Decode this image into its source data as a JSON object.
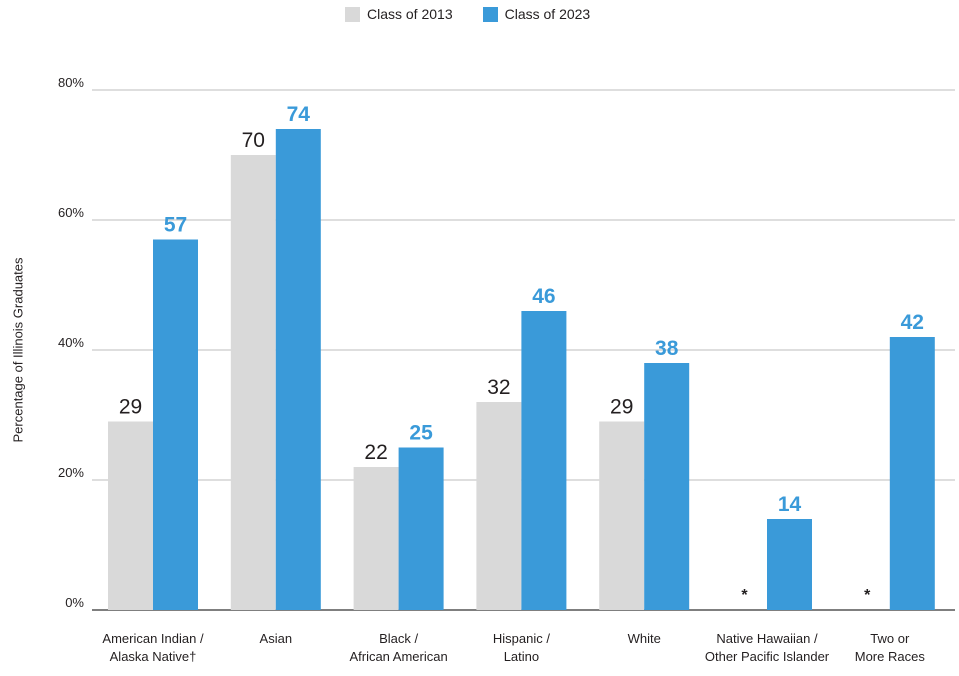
{
  "chart_data": {
    "type": "bar",
    "ylabel": "Percentage of Illinois Graduates",
    "ylim": [
      0,
      80
    ],
    "yticks": [
      "0%",
      "20%",
      "40%",
      "60%",
      "80%"
    ],
    "ytick_values": [
      0,
      20,
      40,
      60,
      80
    ],
    "grid": true,
    "legend_position": "top-center",
    "categories": [
      [
        "American Indian /",
        "Alaska Native†"
      ],
      [
        "Asian"
      ],
      [
        "Black /",
        "African American"
      ],
      [
        "Hispanic /",
        "Latino"
      ],
      [
        "White"
      ],
      [
        "Native Hawaiian /",
        "Other Pacific Islander"
      ],
      [
        "Two or",
        "More Races"
      ]
    ],
    "series": [
      {
        "name": "Class of 2013",
        "color": "#d9d9d9",
        "label_color": "#231f20",
        "values": [
          29,
          70,
          22,
          32,
          29,
          null,
          null
        ],
        "labels": [
          "29",
          "70",
          "22",
          "32",
          "29",
          "*",
          "*"
        ]
      },
      {
        "name": "Class of 2023",
        "color": "#3a9ad9",
        "label_color": "#3a9ad9",
        "values": [
          57,
          74,
          25,
          46,
          38,
          14,
          42
        ],
        "labels": [
          "57",
          "74",
          "25",
          "46",
          "38",
          "14",
          "42"
        ]
      }
    ]
  }
}
